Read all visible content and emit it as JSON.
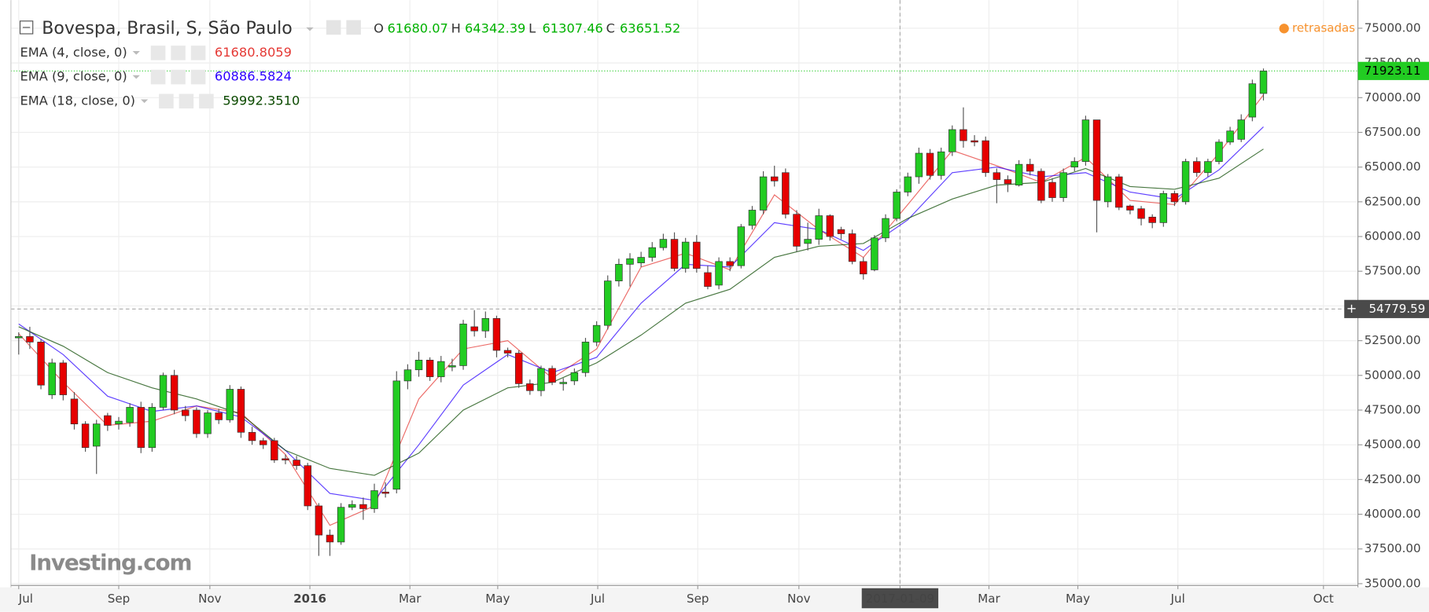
{
  "chart_data": {
    "type": "candlestick",
    "title": "Bovespa, Brasil, S, São Paulo",
    "header_ohlc": [
      {
        "label": "O",
        "value": 61680.07
      },
      {
        "label": "H",
        "value": 64342.39
      },
      {
        "label": "L",
        "value": 61307.46
      },
      {
        "label": "C",
        "value": 63651.52
      }
    ],
    "status": "retrasadas",
    "logo": "Investing.com",
    "up_color": "#22cc22",
    "down_color": "#e60000",
    "xlim": [
      -0.7,
      120.5
    ],
    "ylim": [
      35000,
      76500
    ],
    "xticks": [
      {
        "value": 0,
        "label": "Jul"
      },
      {
        "value": 9,
        "label": "Sep"
      },
      {
        "value": 17.2,
        "label": "Nov"
      },
      {
        "value": 26.2,
        "label": "2016"
      },
      {
        "value": 35.2,
        "label": "Mar"
      },
      {
        "value": 43.1,
        "label": "May"
      },
      {
        "value": 52.1,
        "label": "Jul"
      },
      {
        "value": 61.1,
        "label": "Sep"
      },
      {
        "value": 70.2,
        "label": "Nov"
      },
      {
        "value": 79.3,
        "label": "2017-01-09"
      },
      {
        "value": 87.3,
        "label": "Mar"
      },
      {
        "value": 95.3,
        "label": "May"
      },
      {
        "value": 104.3,
        "label": "Jul"
      },
      {
        "value": 117.4,
        "label": "Oct"
      }
    ],
    "yticks": [
      {
        "value": 35000,
        "label": "35000.00"
      },
      {
        "value": 37500,
        "label": "37500.00"
      },
      {
        "value": 40000,
        "label": "40000.00"
      },
      {
        "value": 42500,
        "label": "42500.00"
      },
      {
        "value": 45000,
        "label": "45000.00"
      },
      {
        "value": 47500,
        "label": "47500.00"
      },
      {
        "value": 50000,
        "label": "50000.00"
      },
      {
        "value": 52500,
        "label": "52500.00"
      },
      {
        "value": 55000,
        "label": "55000.00"
      },
      {
        "value": 57500,
        "label": "57500.00"
      },
      {
        "value": 60000,
        "label": "60000.00"
      },
      {
        "value": 62500,
        "label": "62500.00"
      },
      {
        "value": 65000,
        "label": "65000.00"
      },
      {
        "value": 67500,
        "label": "67500.00"
      },
      {
        "value": 70000,
        "label": "70000.00"
      },
      {
        "value": 72500,
        "label": "72500.00"
      },
      {
        "value": 75000,
        "label": "75000.00"
      }
    ],
    "grid": true,
    "crosshair": {
      "x_tick": 9,
      "y": 54779.59
    },
    "last_price": 71923.11,
    "open": [
      52700,
      52800,
      52400,
      48600,
      50900,
      48300,
      46500,
      44900,
      47100,
      46500,
      46600,
      47700,
      44800,
      47700,
      50000,
      47500,
      47500,
      45800,
      47300,
      46800,
      49000,
      45900,
      45300,
      45300,
      44000,
      43900,
      43500,
      40600,
      38500,
      38000,
      40500,
      40700,
      40400,
      41600,
      41800,
      49600,
      50400,
      51100,
      49900,
      50600,
      50700,
      53500,
      53200,
      54100,
      51800,
      51600,
      49400,
      48900,
      50500,
      49400,
      49600,
      50200,
      52400,
      53600,
      56800,
      58000,
      58100,
      58500,
      59200,
      59800,
      57700,
      59600,
      57400,
      56500,
      58200,
      57900,
      60800,
      61900,
      64300,
      64600,
      61600,
      59500,
      59800,
      61500,
      60500,
      60200,
      58200,
      57600,
      59900,
      61300,
      63200,
      64300,
      66000,
      64400,
      66100,
      67700,
      66900,
      66900,
      64600,
      64100,
      63700,
      65200,
      64700,
      63900,
      62800,
      65000,
      65400,
      68400,
      62500,
      64300,
      62200,
      62000,
      61400,
      61000,
      63100,
      62500,
      65400,
      64600,
      65400,
      66800,
      67000,
      68600,
      70300
    ],
    "high": [
      53100,
      53500,
      52600,
      51200,
      51100,
      48800,
      46700,
      46800,
      47300,
      47000,
      48000,
      48100,
      48000,
      50200,
      50400,
      47800,
      47700,
      47500,
      47600,
      49300,
      49200,
      46300,
      45500,
      45500,
      44300,
      44200,
      43700,
      40800,
      38900,
      40800,
      41000,
      41200,
      42200,
      42300,
      50300,
      50800,
      51700,
      51300,
      51400,
      51200,
      54000,
      54700,
      54600,
      54300,
      52000,
      51800,
      49700,
      50700,
      50700,
      49800,
      50500,
      52700,
      53900,
      57200,
      58400,
      58800,
      58900,
      59600,
      60200,
      60300,
      59900,
      60100,
      57900,
      58500,
      58500,
      60900,
      62200,
      64700,
      65100,
      64900,
      61900,
      61000,
      62000,
      61600,
      60700,
      60500,
      58500,
      60100,
      61600,
      63400,
      64600,
      66400,
      66300,
      66400,
      68000,
      69300,
      67300,
      67200,
      64900,
      64400,
      65500,
      65600,
      64900,
      64200,
      64900,
      65700,
      68700,
      68200,
      64500,
      64500,
      62300,
      62200,
      61600,
      63300,
      63300,
      65600,
      65700,
      65600,
      67000,
      67900,
      68800,
      71300,
      72100
    ],
    "low": [
      51500,
      51900,
      49000,
      48300,
      48200,
      46100,
      44500,
      42900,
      46000,
      46100,
      46300,
      44400,
      44500,
      47500,
      47200,
      46700,
      45500,
      45500,
      46500,
      46600,
      45500,
      45000,
      44700,
      43700,
      43600,
      43200,
      40300,
      37000,
      37000,
      37800,
      40300,
      39600,
      40100,
      41200,
      41500,
      49000,
      49900,
      49600,
      49500,
      50300,
      50400,
      52800,
      52700,
      51300,
      51300,
      49100,
      48600,
      48500,
      49300,
      48900,
      49300,
      49900,
      52100,
      53300,
      56400,
      56400,
      57800,
      58200,
      59000,
      57500,
      57400,
      57400,
      56200,
      56200,
      57500,
      57700,
      60500,
      61600,
      63600,
      61300,
      58900,
      59000,
      59400,
      59700,
      59800,
      58000,
      56900,
      57500,
      59600,
      61100,
      62900,
      63800,
      64100,
      64100,
      65800,
      66400,
      66500,
      64300,
      62400,
      63200,
      63600,
      64400,
      62400,
      62500,
      62500,
      64700,
      65100,
      60300,
      62100,
      61900,
      61600,
      60800,
      60600,
      60700,
      62200,
      62300,
      64300,
      64300,
      65200,
      66600,
      66800,
      68300,
      69800
    ],
    "close": [
      52800,
      52400,
      49300,
      50900,
      48600,
      46500,
      44800,
      46500,
      46400,
      46700,
      47700,
      44800,
      47700,
      50000,
      47500,
      47100,
      45800,
      47300,
      46800,
      49000,
      45900,
      45300,
      45000,
      43900,
      43900,
      43500,
      40600,
      38500,
      38000,
      40500,
      40700,
      40400,
      41700,
      41500,
      49600,
      50400,
      51100,
      49900,
      51000,
      50700,
      53700,
      53200,
      54100,
      51800,
      51600,
      49400,
      48900,
      50500,
      49500,
      49500,
      50200,
      52400,
      53600,
      56800,
      58000,
      58400,
      58500,
      59200,
      59800,
      57700,
      59600,
      57700,
      56400,
      58200,
      57900,
      60700,
      61900,
      64300,
      64000,
      61600,
      59300,
      59800,
      61500,
      60000,
      60200,
      58200,
      57300,
      59900,
      61300,
      63200,
      64300,
      66000,
      64400,
      66100,
      67700,
      66900,
      66800,
      64600,
      64100,
      63800,
      65200,
      64700,
      62600,
      62800,
      64600,
      65400,
      68400,
      62600,
      64300,
      62100,
      61900,
      61300,
      61000,
      63100,
      62500,
      65400,
      64600,
      65400,
      66800,
      67600,
      68400,
      71000,
      71923.11
    ],
    "indicators": [
      {
        "name": "EMA (4, close, 0)",
        "color": "#e53935",
        "last": 61680.8059,
        "x": [
          0,
          4,
          8,
          12,
          16,
          20,
          24,
          28,
          32,
          36,
          40,
          44,
          48,
          52,
          56,
          60,
          64,
          68,
          72,
          76,
          80,
          84,
          88,
          92,
          96,
          100,
          104,
          108,
          112
        ],
        "values": [
          53000,
          49500,
          46400,
          46700,
          47800,
          47300,
          44300,
          39200,
          40600,
          48300,
          51900,
          52500,
          49800,
          51900,
          57800,
          58800,
          57600,
          63000,
          60500,
          58500,
          62300,
          66200,
          65100,
          63900,
          65700,
          62600,
          62300,
          66000,
          70200
        ]
      },
      {
        "name": "EMA (9, close, 0)",
        "color": "#2a00ff",
        "last": 60886.5824,
        "x": [
          0,
          4,
          8,
          12,
          16,
          20,
          24,
          28,
          32,
          36,
          40,
          44,
          48,
          52,
          56,
          60,
          64,
          68,
          72,
          76,
          80,
          84,
          88,
          92,
          96,
          100,
          104,
          108,
          112
        ],
        "values": [
          53700,
          51500,
          48500,
          47400,
          47800,
          47000,
          44600,
          41500,
          41000,
          45000,
          49300,
          51500,
          50200,
          51300,
          55200,
          58000,
          57800,
          61000,
          60500,
          59000,
          61200,
          64600,
          65000,
          64300,
          64600,
          63200,
          62700,
          64800,
          67900
        ]
      },
      {
        "name": "EMA (18, close, 0)",
        "color": "#0b4a00",
        "last": {
          "value": 59992.351,
          "label": "59992.3510"
        },
        "x": [
          0,
          4,
          8,
          12,
          16,
          20,
          24,
          28,
          32,
          36,
          40,
          44,
          48,
          52,
          56,
          60,
          64,
          68,
          72,
          76,
          80,
          84,
          88,
          92,
          96,
          100,
          104,
          108,
          112
        ],
        "values": [
          53500,
          52100,
          50200,
          49100,
          48300,
          47200,
          44600,
          43300,
          42800,
          44400,
          47500,
          49100,
          49500,
          50900,
          52900,
          55200,
          56200,
          58500,
          59300,
          59500,
          61300,
          62700,
          63700,
          63900,
          64900,
          63600,
          63400,
          64200,
          66300
        ]
      }
    ]
  }
}
